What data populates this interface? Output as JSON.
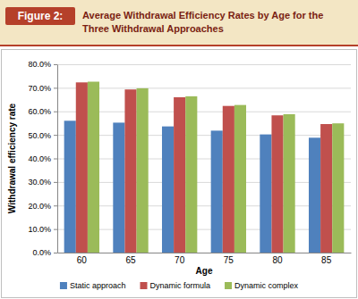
{
  "chart_data": {
    "type": "bar",
    "title": "Average Withdrawal Efficiency Rates by Age for the Three Withdrawal Approaches",
    "annotations": [
      "Figure 2:"
    ],
    "x_label": "Age",
    "y_label": "Withdrawal efficiency rate",
    "categories": [
      "60",
      "65",
      "70",
      "75",
      "80",
      "85"
    ],
    "series": [
      {
        "name": "Static approach",
        "color": "#4f81bd",
        "values": [
          56.0,
          55.2,
          53.6,
          51.8,
          50.2,
          48.8
        ]
      },
      {
        "name": "Dynamic formula",
        "color": "#c0504d",
        "values": [
          72.3,
          69.3,
          66.0,
          62.3,
          58.3,
          54.6
        ]
      },
      {
        "name": "Dynamic complex",
        "color": "#9bbb59",
        "values": [
          72.6,
          69.8,
          66.4,
          62.7,
          58.8,
          54.9
        ]
      }
    ],
    "ylim": [
      0,
      80
    ],
    "yticks": [
      {
        "value": 0,
        "label": "0.0%"
      },
      {
        "value": 10,
        "label": "10.0%"
      },
      {
        "value": 20,
        "label": "20.0%"
      },
      {
        "value": 30,
        "label": "30.0%"
      },
      {
        "value": 40,
        "label": "40.0%"
      },
      {
        "value": 50,
        "label": "50.0%"
      },
      {
        "value": 60,
        "label": "60.0%"
      },
      {
        "value": 70,
        "label": "70.0%"
      },
      {
        "value": 80,
        "label": "80.0%"
      }
    ],
    "grid": true,
    "legend": "bottom"
  }
}
